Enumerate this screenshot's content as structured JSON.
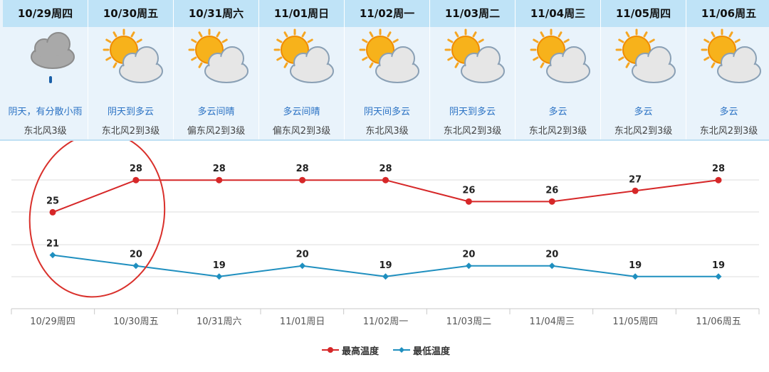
{
  "forecast": [
    {
      "date": "10/29周四",
      "weather": "阴天，有分散小雨",
      "wind": "东北风3级",
      "icon": "cloud-rain-icon"
    },
    {
      "date": "10/30周五",
      "weather": "阴天到多云",
      "wind": "东北风2到3级",
      "icon": "sun-cloud-icon"
    },
    {
      "date": "10/31周六",
      "weather": "多云间晴",
      "wind": "偏东风2到3级",
      "icon": "sun-cloud-icon"
    },
    {
      "date": "11/01周日",
      "weather": "多云间晴",
      "wind": "偏东风2到3级",
      "icon": "sun-cloud-icon"
    },
    {
      "date": "11/02周一",
      "weather": "阴天间多云",
      "wind": "东北风3级",
      "icon": "sun-cloud-icon"
    },
    {
      "date": "11/03周二",
      "weather": "阴天到多云",
      "wind": "东北风2到3级",
      "icon": "sun-cloud-icon"
    },
    {
      "date": "11/04周三",
      "weather": "多云",
      "wind": "东北风2到3级",
      "icon": "sun-cloud-icon"
    },
    {
      "date": "11/05周四",
      "weather": "多云",
      "wind": "东北风2到3级",
      "icon": "sun-cloud-icon"
    },
    {
      "date": "11/06周五",
      "weather": "多云",
      "wind": "东北风2到3级",
      "icon": "sun-cloud-icon"
    }
  ],
  "chart_data": {
    "type": "line",
    "categories": [
      "10/29周四",
      "10/30周五",
      "10/31周六",
      "11/01周日",
      "11/02周一",
      "11/03周二",
      "11/04周三",
      "11/05周四",
      "11/06周五"
    ],
    "series": [
      {
        "name": "最高温度",
        "values": [
          25,
          28,
          28,
          28,
          28,
          26,
          26,
          27,
          28
        ],
        "color": "#d62728"
      },
      {
        "name": "最低温度",
        "values": [
          21,
          20,
          19,
          20,
          19,
          20,
          20,
          19,
          19
        ],
        "color": "#1f8fbf"
      }
    ],
    "ylim": [
      16,
      31
    ],
    "grid": true,
    "legend": "bottom-center",
    "annotation": {
      "type": "ellipse",
      "color": "#d9302b",
      "covers_categories": [
        "10/29周四",
        "10/30周五"
      ]
    }
  }
}
